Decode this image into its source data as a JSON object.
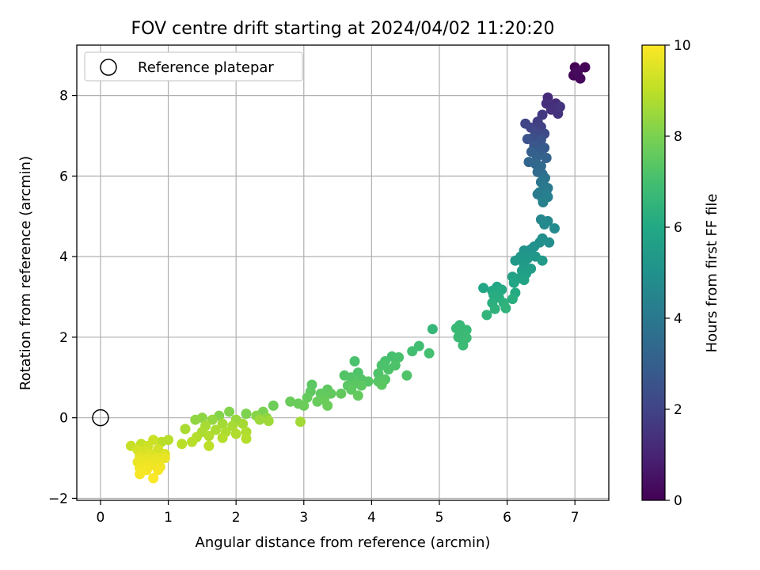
{
  "chart_data": {
    "type": "scatter",
    "title": "FOV centre drift starting at 2024/04/02 11:20:20",
    "xlabel": "Angular distance from reference (arcmin)",
    "ylabel": "Rotation from reference (arcmin)",
    "xlim": [
      -0.35,
      7.5
    ],
    "ylim": [
      -2.05,
      9.25
    ],
    "xticks": [
      0,
      1,
      2,
      3,
      4,
      5,
      6,
      7
    ],
    "yticks": [
      -2,
      0,
      2,
      4,
      6,
      8
    ],
    "grid": true,
    "legend": {
      "placement": "top-left",
      "entries": [
        "Reference platepar"
      ]
    },
    "reference_point": {
      "x": 0,
      "y": 0
    },
    "colorbar": {
      "label": "Hours from first FF file",
      "range": [
        0,
        10
      ],
      "ticks": [
        0,
        2,
        4,
        6,
        8,
        10
      ],
      "colormap": "viridis"
    },
    "points": [
      {
        "x": 7.0,
        "y": 8.7,
        "h": 0.0
      },
      {
        "x": 7.15,
        "y": 8.7,
        "h": 0.1
      },
      {
        "x": 6.98,
        "y": 8.5,
        "h": 0.15
      },
      {
        "x": 7.08,
        "y": 8.42,
        "h": 0.2
      },
      {
        "x": 7.04,
        "y": 8.58,
        "h": 0.25
      },
      {
        "x": 6.6,
        "y": 7.95,
        "h": 1.2
      },
      {
        "x": 6.72,
        "y": 7.8,
        "h": 1.3
      },
      {
        "x": 6.58,
        "y": 7.8,
        "h": 1.35
      },
      {
        "x": 6.65,
        "y": 7.65,
        "h": 1.4
      },
      {
        "x": 6.75,
        "y": 7.55,
        "h": 1.45
      },
      {
        "x": 6.78,
        "y": 7.72,
        "h": 1.5
      },
      {
        "x": 6.52,
        "y": 7.52,
        "h": 1.7
      },
      {
        "x": 6.45,
        "y": 7.35,
        "h": 1.8
      },
      {
        "x": 6.5,
        "y": 7.22,
        "h": 1.9
      },
      {
        "x": 6.35,
        "y": 7.2,
        "h": 2.0
      },
      {
        "x": 6.27,
        "y": 7.3,
        "h": 2.05
      },
      {
        "x": 6.42,
        "y": 7.1,
        "h": 2.15
      },
      {
        "x": 6.55,
        "y": 7.05,
        "h": 2.2
      },
      {
        "x": 6.38,
        "y": 6.95,
        "h": 2.4
      },
      {
        "x": 6.3,
        "y": 6.92,
        "h": 2.5
      },
      {
        "x": 6.5,
        "y": 6.9,
        "h": 2.55
      },
      {
        "x": 6.45,
        "y": 6.8,
        "h": 2.6
      },
      {
        "x": 6.4,
        "y": 6.75,
        "h": 2.7
      },
      {
        "x": 6.55,
        "y": 6.7,
        "h": 2.8
      },
      {
        "x": 6.48,
        "y": 6.6,
        "h": 2.9
      },
      {
        "x": 6.36,
        "y": 6.6,
        "h": 3.0
      },
      {
        "x": 6.44,
        "y": 6.48,
        "h": 3.1
      },
      {
        "x": 6.58,
        "y": 6.45,
        "h": 3.15
      },
      {
        "x": 6.32,
        "y": 6.35,
        "h": 3.25
      },
      {
        "x": 6.42,
        "y": 6.3,
        "h": 3.3
      },
      {
        "x": 6.5,
        "y": 6.25,
        "h": 3.35
      },
      {
        "x": 6.45,
        "y": 6.1,
        "h": 3.45
      },
      {
        "x": 6.52,
        "y": 6.05,
        "h": 3.5
      },
      {
        "x": 6.56,
        "y": 5.95,
        "h": 3.8
      },
      {
        "x": 6.5,
        "y": 5.85,
        "h": 3.9
      },
      {
        "x": 6.55,
        "y": 5.75,
        "h": 4.0
      },
      {
        "x": 6.6,
        "y": 5.7,
        "h": 4.05
      },
      {
        "x": 6.48,
        "y": 5.6,
        "h": 4.1
      },
      {
        "x": 6.45,
        "y": 5.55,
        "h": 4.15
      },
      {
        "x": 6.58,
        "y": 5.55,
        "h": 4.2
      },
      {
        "x": 6.52,
        "y": 5.45,
        "h": 4.25
      },
      {
        "x": 6.6,
        "y": 5.48,
        "h": 4.3
      },
      {
        "x": 6.53,
        "y": 5.35,
        "h": 4.35
      },
      {
        "x": 6.5,
        "y": 4.92,
        "h": 4.6
      },
      {
        "x": 6.6,
        "y": 4.88,
        "h": 4.65
      },
      {
        "x": 6.55,
        "y": 4.8,
        "h": 4.7
      },
      {
        "x": 6.7,
        "y": 4.7,
        "h": 4.75
      },
      {
        "x": 6.52,
        "y": 4.45,
        "h": 4.85
      },
      {
        "x": 6.62,
        "y": 4.35,
        "h": 4.9
      },
      {
        "x": 6.48,
        "y": 4.35,
        "h": 4.95
      },
      {
        "x": 6.4,
        "y": 4.25,
        "h": 5.0
      },
      {
        "x": 6.35,
        "y": 4.18,
        "h": 5.05
      },
      {
        "x": 6.25,
        "y": 4.15,
        "h": 5.1
      },
      {
        "x": 6.3,
        "y": 4.05,
        "h": 5.15
      },
      {
        "x": 6.2,
        "y": 4.0,
        "h": 5.2
      },
      {
        "x": 6.42,
        "y": 4.0,
        "h": 5.25
      },
      {
        "x": 6.3,
        "y": 3.95,
        "h": 5.3
      },
      {
        "x": 6.12,
        "y": 3.9,
        "h": 5.35
      },
      {
        "x": 6.52,
        "y": 3.9,
        "h": 5.4
      },
      {
        "x": 6.25,
        "y": 3.8,
        "h": 5.45
      },
      {
        "x": 6.35,
        "y": 3.7,
        "h": 5.5
      },
      {
        "x": 6.22,
        "y": 3.65,
        "h": 5.55
      },
      {
        "x": 6.28,
        "y": 3.58,
        "h": 5.6
      },
      {
        "x": 6.08,
        "y": 3.5,
        "h": 5.7
      },
      {
        "x": 6.15,
        "y": 3.45,
        "h": 5.75
      },
      {
        "x": 6.25,
        "y": 3.42,
        "h": 5.8
      },
      {
        "x": 6.1,
        "y": 3.35,
        "h": 5.85
      },
      {
        "x": 5.65,
        "y": 3.22,
        "h": 5.9
      },
      {
        "x": 5.85,
        "y": 3.25,
        "h": 5.95
      },
      {
        "x": 5.78,
        "y": 3.15,
        "h": 6.0
      },
      {
        "x": 5.92,
        "y": 3.18,
        "h": 6.05
      },
      {
        "x": 6.12,
        "y": 3.1,
        "h": 6.1
      },
      {
        "x": 5.8,
        "y": 3.05,
        "h": 6.15
      },
      {
        "x": 5.88,
        "y": 2.98,
        "h": 6.2
      },
      {
        "x": 6.08,
        "y": 2.95,
        "h": 6.25
      },
      {
        "x": 5.78,
        "y": 2.85,
        "h": 6.3
      },
      {
        "x": 5.95,
        "y": 2.85,
        "h": 6.35
      },
      {
        "x": 5.82,
        "y": 2.7,
        "h": 6.4
      },
      {
        "x": 5.98,
        "y": 2.72,
        "h": 6.45
      },
      {
        "x": 5.7,
        "y": 2.55,
        "h": 6.5
      },
      {
        "x": 4.9,
        "y": 2.2,
        "h": 6.6
      },
      {
        "x": 5.3,
        "y": 2.3,
        "h": 6.65
      },
      {
        "x": 5.25,
        "y": 2.22,
        "h": 6.7
      },
      {
        "x": 5.4,
        "y": 2.18,
        "h": 6.72
      },
      {
        "x": 5.32,
        "y": 2.1,
        "h": 6.74
      },
      {
        "x": 5.28,
        "y": 2.0,
        "h": 6.76
      },
      {
        "x": 5.4,
        "y": 1.98,
        "h": 6.78
      },
      {
        "x": 5.35,
        "y": 1.8,
        "h": 6.8
      },
      {
        "x": 4.7,
        "y": 1.78,
        "h": 6.9
      },
      {
        "x": 4.6,
        "y": 1.65,
        "h": 6.95
      },
      {
        "x": 4.85,
        "y": 1.6,
        "h": 7.0
      },
      {
        "x": 4.3,
        "y": 1.52,
        "h": 7.05
      },
      {
        "x": 4.4,
        "y": 1.5,
        "h": 7.08
      },
      {
        "x": 4.2,
        "y": 1.4,
        "h": 7.1
      },
      {
        "x": 3.75,
        "y": 1.4,
        "h": 7.12
      },
      {
        "x": 4.15,
        "y": 1.3,
        "h": 7.14
      },
      {
        "x": 4.35,
        "y": 1.3,
        "h": 7.16
      },
      {
        "x": 4.25,
        "y": 1.2,
        "h": 7.18
      },
      {
        "x": 3.8,
        "y": 1.12,
        "h": 7.2
      },
      {
        "x": 4.1,
        "y": 1.1,
        "h": 7.22
      },
      {
        "x": 4.52,
        "y": 1.05,
        "h": 7.24
      },
      {
        "x": 3.6,
        "y": 1.05,
        "h": 7.26
      },
      {
        "x": 3.7,
        "y": 1.0,
        "h": 7.28
      },
      {
        "x": 3.85,
        "y": 0.95,
        "h": 7.3
      },
      {
        "x": 4.2,
        "y": 0.95,
        "h": 7.32
      },
      {
        "x": 3.95,
        "y": 0.9,
        "h": 7.34
      },
      {
        "x": 4.1,
        "y": 0.9,
        "h": 7.36
      },
      {
        "x": 3.75,
        "y": 0.85,
        "h": 7.38
      },
      {
        "x": 3.65,
        "y": 0.8,
        "h": 7.4
      },
      {
        "x": 3.12,
        "y": 0.82,
        "h": 7.42
      },
      {
        "x": 4.15,
        "y": 0.82,
        "h": 7.44
      },
      {
        "x": 3.85,
        "y": 0.8,
        "h": 7.46
      },
      {
        "x": 3.7,
        "y": 0.7,
        "h": 7.48
      },
      {
        "x": 3.35,
        "y": 0.7,
        "h": 7.5
      },
      {
        "x": 3.1,
        "y": 0.65,
        "h": 7.52
      },
      {
        "x": 3.25,
        "y": 0.6,
        "h": 7.54
      },
      {
        "x": 3.4,
        "y": 0.6,
        "h": 7.56
      },
      {
        "x": 3.55,
        "y": 0.6,
        "h": 7.58
      },
      {
        "x": 3.8,
        "y": 0.55,
        "h": 7.6
      },
      {
        "x": 3.05,
        "y": 0.5,
        "h": 7.62
      },
      {
        "x": 3.3,
        "y": 0.45,
        "h": 7.64
      },
      {
        "x": 3.2,
        "y": 0.4,
        "h": 7.66
      },
      {
        "x": 2.8,
        "y": 0.4,
        "h": 7.68
      },
      {
        "x": 2.92,
        "y": 0.35,
        "h": 7.7
      },
      {
        "x": 3.0,
        "y": 0.3,
        "h": 7.72
      },
      {
        "x": 3.35,
        "y": 0.3,
        "h": 7.74
      },
      {
        "x": 2.55,
        "y": 0.3,
        "h": 7.76
      },
      {
        "x": 2.4,
        "y": 0.15,
        "h": 8.0
      },
      {
        "x": 2.15,
        "y": 0.1,
        "h": 8.05
      },
      {
        "x": 1.9,
        "y": 0.15,
        "h": 8.1
      },
      {
        "x": 1.75,
        "y": 0.05,
        "h": 8.15
      },
      {
        "x": 2.3,
        "y": 0.05,
        "h": 8.2
      },
      {
        "x": 2.45,
        "y": 0.0,
        "h": 8.25
      },
      {
        "x": 1.5,
        "y": 0.0,
        "h": 8.3
      },
      {
        "x": 1.4,
        "y": -0.05,
        "h": 8.35
      },
      {
        "x": 1.65,
        "y": -0.05,
        "h": 8.4
      },
      {
        "x": 2.0,
        "y": -0.05,
        "h": 8.45
      },
      {
        "x": 2.35,
        "y": -0.05,
        "h": 8.5
      },
      {
        "x": 2.48,
        "y": -0.08,
        "h": 8.55
      },
      {
        "x": 2.95,
        "y": -0.1,
        "h": 8.6
      },
      {
        "x": 1.8,
        "y": -0.15,
        "h": 8.62
      },
      {
        "x": 2.1,
        "y": -0.15,
        "h": 8.64
      },
      {
        "x": 1.55,
        "y": -0.2,
        "h": 8.66
      },
      {
        "x": 1.95,
        "y": -0.2,
        "h": 8.68
      },
      {
        "x": 1.25,
        "y": -0.28,
        "h": 8.7
      },
      {
        "x": 1.7,
        "y": -0.3,
        "h": 8.72
      },
      {
        "x": 1.5,
        "y": -0.35,
        "h": 8.74
      },
      {
        "x": 1.85,
        "y": -0.35,
        "h": 8.76
      },
      {
        "x": 2.15,
        "y": -0.35,
        "h": 8.78
      },
      {
        "x": 2.0,
        "y": -0.4,
        "h": 8.8
      },
      {
        "x": 1.6,
        "y": -0.45,
        "h": 8.82
      },
      {
        "x": 1.42,
        "y": -0.48,
        "h": 8.84
      },
      {
        "x": 1.8,
        "y": -0.5,
        "h": 8.86
      },
      {
        "x": 2.15,
        "y": -0.52,
        "h": 8.88
      },
      {
        "x": 1.0,
        "y": -0.55,
        "h": 8.9
      },
      {
        "x": 1.35,
        "y": -0.6,
        "h": 8.92
      },
      {
        "x": 0.9,
        "y": -0.6,
        "h": 8.94
      },
      {
        "x": 1.2,
        "y": -0.65,
        "h": 8.96
      },
      {
        "x": 1.6,
        "y": -0.7,
        "h": 8.98
      },
      {
        "x": 0.6,
        "y": -0.65,
        "h": 9.1
      },
      {
        "x": 0.45,
        "y": -0.7,
        "h": 9.15
      },
      {
        "x": 0.78,
        "y": -0.55,
        "h": 9.2
      },
      {
        "x": 0.7,
        "y": -0.7,
        "h": 9.25
      },
      {
        "x": 0.85,
        "y": -0.78,
        "h": 9.3
      },
      {
        "x": 0.55,
        "y": -0.8,
        "h": 9.35
      },
      {
        "x": 0.65,
        "y": -0.85,
        "h": 9.4
      },
      {
        "x": 0.75,
        "y": -0.9,
        "h": 9.45
      },
      {
        "x": 0.95,
        "y": -0.9,
        "h": 9.5
      },
      {
        "x": 0.58,
        "y": -0.95,
        "h": 9.55
      },
      {
        "x": 0.7,
        "y": -1.0,
        "h": 9.6
      },
      {
        "x": 0.85,
        "y": -1.0,
        "h": 9.62
      },
      {
        "x": 0.6,
        "y": -1.05,
        "h": 9.64
      },
      {
        "x": 0.78,
        "y": -1.05,
        "h": 9.66
      },
      {
        "x": 0.95,
        "y": -1.0,
        "h": 9.68
      },
      {
        "x": 0.55,
        "y": -1.1,
        "h": 9.7
      },
      {
        "x": 0.68,
        "y": -1.12,
        "h": 9.72
      },
      {
        "x": 0.8,
        "y": -1.15,
        "h": 9.74
      },
      {
        "x": 0.62,
        "y": -1.18,
        "h": 9.76
      },
      {
        "x": 0.72,
        "y": -1.2,
        "h": 9.78
      },
      {
        "x": 0.88,
        "y": -1.22,
        "h": 9.8
      },
      {
        "x": 0.58,
        "y": -1.25,
        "h": 9.82
      },
      {
        "x": 0.68,
        "y": -1.3,
        "h": 9.84
      },
      {
        "x": 0.85,
        "y": -1.3,
        "h": 9.86
      },
      {
        "x": 0.58,
        "y": -1.4,
        "h": 9.9
      },
      {
        "x": 0.78,
        "y": -1.5,
        "h": 9.95
      }
    ]
  }
}
